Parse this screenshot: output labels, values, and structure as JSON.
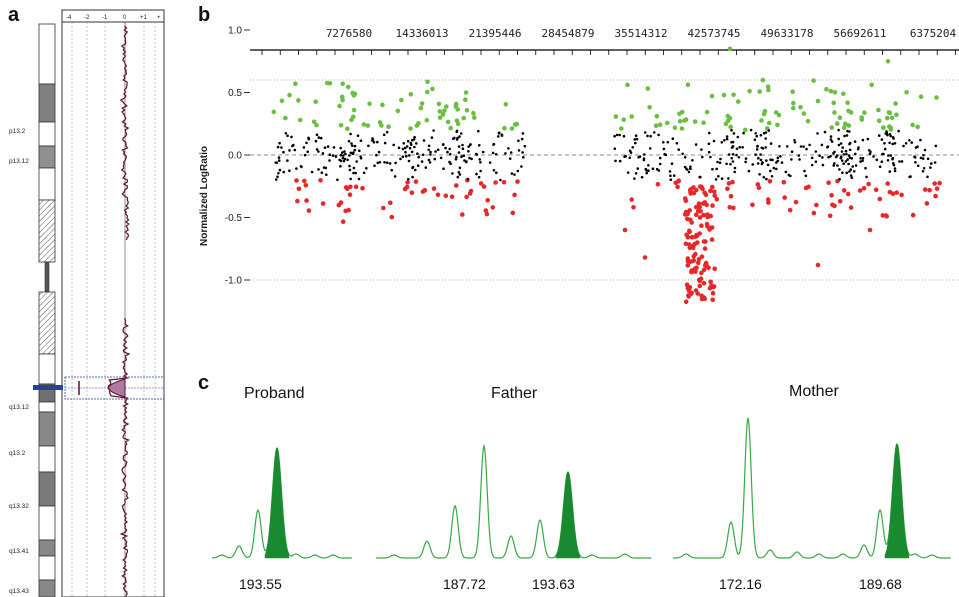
{
  "panels": {
    "a": {
      "letter": "a",
      "scale_labels": [
        "-4",
        "-2",
        "-1",
        "0",
        "+1",
        "+"
      ],
      "band_labels": [
        "p13.2",
        "p13.12",
        "q13.12",
        "q13.2",
        "q13.32",
        "q13.41",
        "q13.43"
      ],
      "colors": {
        "trace": "#5a0f2a",
        "highlight": "#2b3f9e",
        "fill": "#b07aa0"
      }
    },
    "b": {
      "letter": "b",
      "ylabel": "Normalized LogRatio",
      "colors": {
        "gain": "#6abf40",
        "loss": "#e82828",
        "neutral": "#000000"
      }
    },
    "c": {
      "letter": "c",
      "traces": [
        {
          "title": "Proband",
          "peaks": [
            "193.55"
          ]
        },
        {
          "title": "Father",
          "peaks": [
            "187.72",
            "193.63"
          ]
        },
        {
          "title": "Mother",
          "peaks": [
            "172.16",
            "189.68"
          ]
        }
      ],
      "colors": {
        "line": "#3aa845",
        "fill": "#1a8a30"
      }
    }
  },
  "chart_data": {
    "type": "scatter",
    "title": "",
    "xlabel": "",
    "ylabel": "Normalized LogRatio",
    "x_tick_labels": [
      "7276580",
      "14336013",
      "21395446",
      "28454879",
      "35514312",
      "42573745",
      "49633178",
      "56692611",
      "6375204"
    ],
    "y_ticks": [
      1.0,
      0.5,
      0.0,
      -0.5,
      -1.0
    ],
    "y_tick_labels": [
      "1.0",
      "0.5",
      "0.0",
      "-0.5",
      "-1.0"
    ],
    "ylim": [
      -1.2,
      1.0
    ],
    "grid_lines_y": [
      0.6,
      0.0,
      -1.0
    ],
    "series": [
      {
        "color": "#6abf40",
        "description_class": "gain"
      },
      {
        "color": "#000000",
        "description_class": "neutral"
      },
      {
        "color": "#e82828",
        "description_class": "loss"
      }
    ]
  }
}
